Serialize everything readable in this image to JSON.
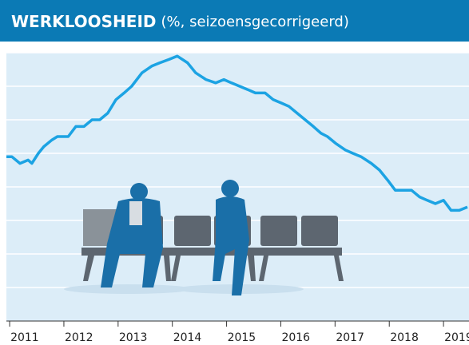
{
  "chart_data": {
    "type": "line",
    "title": "WERKLOOSHEID",
    "subtitle": "(%, seizoensgecorrigeerd)",
    "x": [
      2010.94,
      2011.04,
      2011.19,
      2011.34,
      2011.41,
      2011.53,
      2011.63,
      2011.78,
      2011.88,
      2012.08,
      2012.22,
      2012.37,
      2012.52,
      2012.66,
      2012.81,
      2012.96,
      2013.11,
      2013.25,
      2013.44,
      2013.62,
      2013.77,
      2013.94,
      2014.09,
      2014.28,
      2014.43,
      2014.62,
      2014.8,
      2014.95,
      2015.09,
      2015.24,
      2015.39,
      2015.53,
      2015.71,
      2015.86,
      2016.01,
      2016.15,
      2016.3,
      2016.45,
      2016.6,
      2016.74,
      2016.86,
      2017.01,
      2017.19,
      2017.33,
      2017.48,
      2017.67,
      2017.82,
      2017.97,
      2018.11,
      2018.26,
      2018.41,
      2018.56,
      2018.7,
      2018.85,
      2019.0,
      2019.14,
      2019.29,
      2019.44
    ],
    "series": [
      {
        "color": "#1ca3e3",
        "values": [
          4.9,
          4.9,
          4.7,
          4.8,
          4.7,
          5.0,
          5.2,
          5.4,
          5.5,
          5.5,
          5.8,
          5.8,
          6.0,
          6.0,
          6.2,
          6.6,
          6.8,
          7.0,
          7.4,
          7.6,
          7.7,
          7.8,
          7.9,
          7.7,
          7.4,
          7.2,
          7.1,
          7.2,
          7.1,
          7.0,
          6.9,
          6.8,
          6.8,
          6.6,
          6.5,
          6.4,
          6.2,
          6.0,
          5.8,
          5.6,
          5.5,
          5.3,
          5.1,
          5.0,
          4.9,
          4.7,
          4.5,
          4.2,
          3.9,
          3.9,
          3.9,
          3.7,
          3.6,
          3.5,
          3.6,
          3.3,
          3.3,
          3.4
        ]
      }
    ],
    "xlim": [
      2010.94,
      2019.47
    ],
    "xticks": [
      2011,
      2012,
      2013,
      2014,
      2015,
      2016,
      2017,
      2018,
      2019
    ],
    "ylim": [
      0,
      8
    ],
    "yticks": [
      1,
      2,
      3,
      4,
      5,
      6,
      7,
      8
    ],
    "grid": true
  }
}
